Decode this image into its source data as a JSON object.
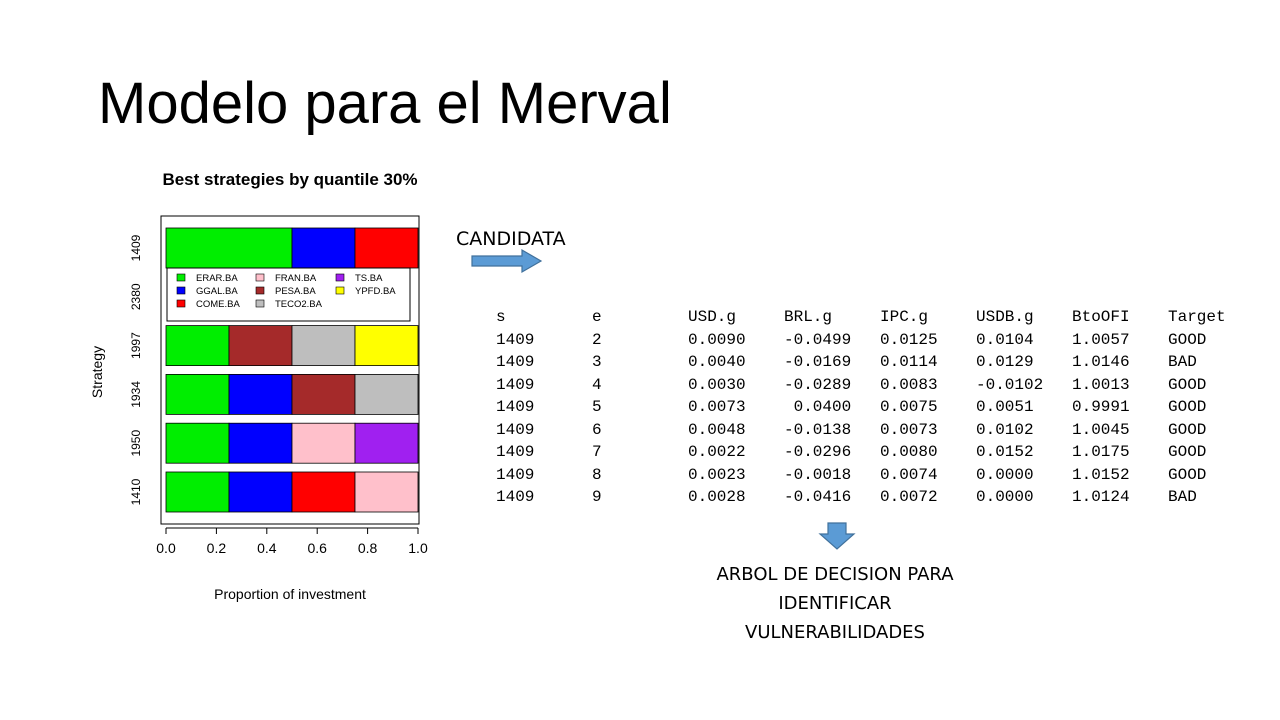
{
  "slide": {
    "title": "Modelo para el Merval",
    "candidata_label": "CANDIDATA",
    "caption_lines": [
      "ARBOL DE DECISION PARA",
      "IDENTIFICAR",
      "VULNERABILIDADES"
    ]
  },
  "chart_data": {
    "type": "bar",
    "orientation": "horizontal",
    "stacked": true,
    "title": "Best strategies by quantile 30%",
    "xlabel": "Proportion of investment",
    "ylabel": "Strategy",
    "xlim": [
      0,
      1
    ],
    "xticks": [
      "0.0",
      "0.2",
      "0.4",
      "0.6",
      "0.8",
      "1.0"
    ],
    "categories": [
      "1409",
      "2380",
      "1997",
      "1934",
      "1950",
      "1410"
    ],
    "legend": {
      "placement": "inside-top",
      "entries": [
        {
          "name": "ERAR.BA",
          "color": "#00ee00"
        },
        {
          "name": "FRAN.BA",
          "color": "#ffc0cb"
        },
        {
          "name": "TS.BA",
          "color": "#a020f0"
        },
        {
          "name": "GGAL.BA",
          "color": "#0000ff"
        },
        {
          "name": "PESA.BA",
          "color": "#a52a2a"
        },
        {
          "name": "YPFD.BA",
          "color": "#ffff00"
        },
        {
          "name": "COME.BA",
          "color": "#ff0000"
        },
        {
          "name": "TECO2.BA",
          "color": "#bebebe"
        }
      ]
    },
    "bars": [
      {
        "category": "1409",
        "segments": [
          {
            "name": "ERAR.BA",
            "value": 0.5
          },
          {
            "name": "GGAL.BA",
            "value": 0.25
          },
          {
            "name": "COME.BA",
            "value": 0.25
          }
        ]
      },
      {
        "category": "2380",
        "segments": []
      },
      {
        "category": "1997",
        "segments": [
          {
            "name": "ERAR.BA",
            "value": 0.25
          },
          {
            "name": "PESA.BA",
            "value": 0.25
          },
          {
            "name": "TECO2.BA",
            "value": 0.25
          },
          {
            "name": "YPFD.BA",
            "value": 0.25
          }
        ]
      },
      {
        "category": "1934",
        "segments": [
          {
            "name": "ERAR.BA",
            "value": 0.25
          },
          {
            "name": "GGAL.BA",
            "value": 0.25
          },
          {
            "name": "PESA.BA",
            "value": 0.25
          },
          {
            "name": "TECO2.BA",
            "value": 0.25
          }
        ]
      },
      {
        "category": "1950",
        "segments": [
          {
            "name": "ERAR.BA",
            "value": 0.25
          },
          {
            "name": "GGAL.BA",
            "value": 0.25
          },
          {
            "name": "FRAN.BA",
            "value": 0.25
          },
          {
            "name": "TS.BA",
            "value": 0.25
          }
        ]
      },
      {
        "category": "1410",
        "segments": [
          {
            "name": "ERAR.BA",
            "value": 0.25
          },
          {
            "name": "GGAL.BA",
            "value": 0.25
          },
          {
            "name": "COME.BA",
            "value": 0.25
          },
          {
            "name": "FRAN.BA",
            "value": 0.25
          }
        ]
      }
    ]
  },
  "table": {
    "headers": [
      "s",
      "e",
      "USD.g",
      "BRL.g",
      "IPC.g",
      "USDB.g",
      "BtoOFI",
      "Target"
    ],
    "rows": [
      [
        "1409",
        "2",
        "0.0090",
        "-0.0499",
        "0.0125",
        "0.0104",
        "1.0057",
        "GOOD"
      ],
      [
        "1409",
        "3",
        "0.0040",
        "-0.0169",
        "0.0114",
        "0.0129",
        "1.0146",
        "BAD"
      ],
      [
        "1409",
        "4",
        "0.0030",
        "-0.0289",
        "0.0083",
        "-0.0102",
        "1.0013",
        "GOOD"
      ],
      [
        "1409",
        "5",
        "0.0073",
        " 0.0400",
        "0.0075",
        "0.0051",
        "0.9991",
        "GOOD"
      ],
      [
        "1409",
        "6",
        "0.0048",
        "-0.0138",
        "0.0073",
        "0.0102",
        "1.0045",
        "GOOD"
      ],
      [
        "1409",
        "7",
        "0.0022",
        "-0.0296",
        "0.0080",
        "0.0152",
        "1.0175",
        "GOOD"
      ],
      [
        "1409",
        "8",
        "0.0023",
        "-0.0018",
        "0.0074",
        "0.0000",
        "1.0152",
        "GOOD"
      ],
      [
        "1409",
        "9",
        "0.0028",
        "-0.0416",
        "0.0072",
        "0.0000",
        "1.0124",
        "BAD"
      ]
    ]
  },
  "colors": {
    "arrow_fill": "#5b9bd5",
    "arrow_stroke": "#41719c"
  }
}
